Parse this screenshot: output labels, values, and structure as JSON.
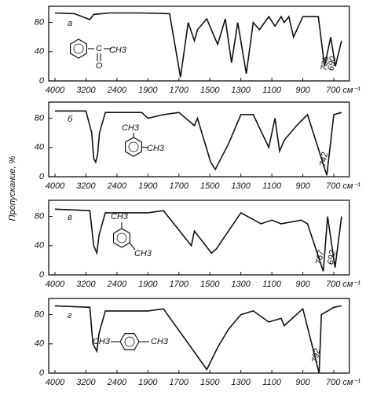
{
  "chart_data": [
    {
      "type": "line",
      "letter": "а",
      "structure_labels": [
        "C",
        "CH3",
        "O"
      ],
      "x": [
        4000,
        3500,
        3100,
        3000,
        2600,
        2000,
        1760,
        1690,
        1640,
        1600,
        1580,
        1520,
        1450,
        1400,
        1360,
        1320,
        1265,
        1220,
        1180,
        1120,
        1080,
        1040,
        1020,
        990,
        960,
        900,
        800,
        760,
        720,
        690,
        650
      ],
      "series": [
        {
          "color": "#111",
          "values": [
            93,
            92,
            84,
            91,
            93,
            93,
            92,
            5,
            80,
            55,
            70,
            85,
            50,
            85,
            25,
            80,
            10,
            80,
            70,
            88,
            75,
            88,
            80,
            88,
            60,
            88,
            88,
            20,
            60,
            20,
            55
          ]
        }
      ],
      "peak_labels": [
        {
          "value": 735,
          "label": "735"
        },
        {
          "value": 690,
          "label": "690"
        }
      ],
      "xlim": [
        4000,
        600
      ],
      "ylim": [
        0,
        100
      ],
      "yticks": [
        0,
        40,
        80
      ],
      "xticks": [
        4000,
        3200,
        2400,
        1900,
        1700,
        1500,
        1300,
        1100,
        900,
        {
          "value": 700,
          "label": "700 см⁻¹"
        }
      ]
    },
    {
      "type": "line",
      "letter": "б",
      "y_label": "Пропускание, %",
      "structure_labels": [
        "CH3",
        "CH3"
      ],
      "x": [
        4000,
        3200,
        3050,
        3000,
        2950,
        2900,
        2850,
        2700,
        2000,
        1900,
        1800,
        1700,
        1600,
        1580,
        1495,
        1465,
        1380,
        1300,
        1220,
        1120,
        1080,
        1050,
        1020,
        940,
        870,
        745,
        700,
        650
      ],
      "series": [
        {
          "color": "#111",
          "values": [
            90,
            90,
            60,
            25,
            20,
            30,
            60,
            88,
            88,
            80,
            85,
            88,
            70,
            80,
            20,
            10,
            45,
            85,
            85,
            40,
            80,
            35,
            50,
            70,
            85,
            2,
            85,
            88
          ]
        }
      ],
      "peak_labels": [
        {
          "value": 742,
          "label": "742"
        }
      ],
      "xlim": [
        4000,
        600
      ],
      "ylim": [
        0,
        100
      ],
      "yticks": [
        0,
        40,
        80
      ],
      "xticks": [
        4000,
        3200,
        2400,
        1900,
        1700,
        1500,
        1300,
        1100,
        900,
        {
          "value": 700,
          "label": "700 см⁻¹"
        }
      ]
    },
    {
      "type": "line",
      "letter": "в",
      "structure_labels": [
        "CH3",
        "CH3"
      ],
      "x": [
        4000,
        3100,
        3000,
        2920,
        2860,
        2700,
        1900,
        1800,
        1620,
        1600,
        1490,
        1460,
        1380,
        1300,
        1170,
        1100,
        1040,
        910,
        870,
        768,
        740,
        692,
        650
      ],
      "series": [
        {
          "color": "#111",
          "values": [
            90,
            88,
            40,
            30,
            55,
            85,
            85,
            88,
            40,
            60,
            30,
            35,
            60,
            85,
            70,
            75,
            70,
            75,
            70,
            5,
            80,
            10,
            80
          ]
        }
      ],
      "peak_labels": [
        {
          "value": 767,
          "label": "767"
        },
        {
          "value": 692,
          "label": "692"
        }
      ],
      "xlim": [
        4000,
        600
      ],
      "ylim": [
        0,
        100
      ],
      "yticks": [
        0,
        40,
        80
      ],
      "xticks": [
        4000,
        3200,
        2400,
        1900,
        1700,
        1500,
        1300,
        1100,
        900,
        {
          "value": 700,
          "label": "700 см⁻¹"
        }
      ]
    },
    {
      "type": "line",
      "letter": "г",
      "structure_labels": [
        "CH3",
        "CH3"
      ],
      "x": [
        4000,
        3100,
        3020,
        2920,
        2860,
        2700,
        1900,
        1800,
        1520,
        1450,
        1380,
        1300,
        1220,
        1120,
        1040,
        1020,
        900,
        795,
        780,
        700,
        650
      ],
      "series": [
        {
          "color": "#111",
          "values": [
            92,
            90,
            40,
            30,
            55,
            85,
            85,
            88,
            5,
            35,
            60,
            80,
            85,
            70,
            75,
            65,
            88,
            0,
            80,
            90,
            92
          ]
        }
      ],
      "peak_labels": [
        {
          "value": 792,
          "label": "792"
        }
      ],
      "xlim": [
        4000,
        600
      ],
      "ylim": [
        0,
        100
      ],
      "yticks": [
        0,
        40,
        80
      ],
      "xticks": [
        4000,
        3200,
        2400,
        1900,
        1700,
        1500,
        1300,
        1100,
        900,
        {
          "value": 700,
          "label": "700 см⁻¹"
        }
      ]
    }
  ]
}
